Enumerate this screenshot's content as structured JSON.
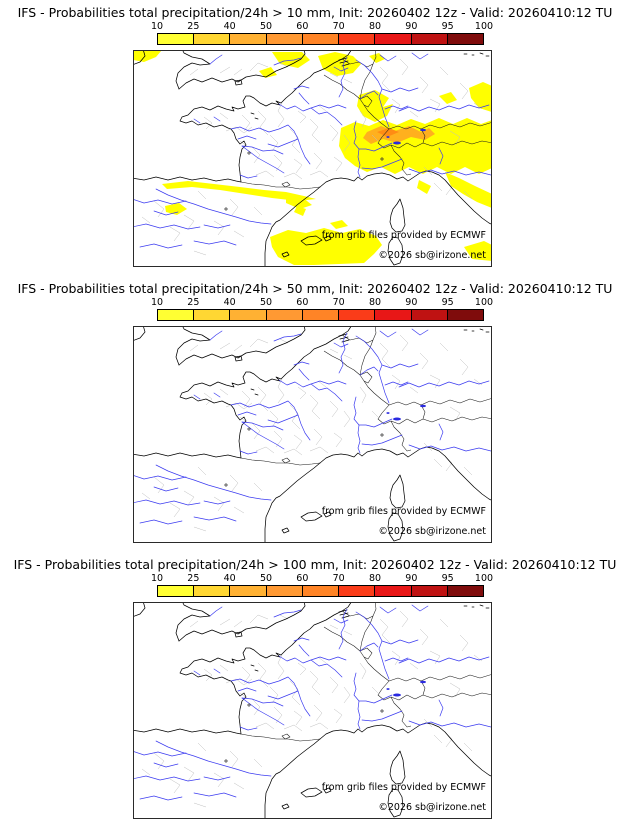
{
  "panels": [
    {
      "title": "IFS - Probabilities total precipitation/24h > 10 mm, Init: 20260402 12z - Valid: 20260410:12 TU",
      "threshold_mm": "10"
    },
    {
      "title": "IFS - Probabilities total precipitation/24h > 50 mm, Init: 20260402 12z - Valid: 20260410:12 TU",
      "threshold_mm": "50"
    },
    {
      "title": "IFS - Probabilities total precipitation/24h > 100 mm, Init: 20260402 12z - Valid: 20260410:12 TU",
      "threshold_mm": "100"
    }
  ],
  "colorbar": {
    "unit": "%",
    "ticks": [
      "10",
      "25",
      "40",
      "50",
      "60",
      "70",
      "80",
      "90",
      "95",
      "100"
    ],
    "colors": [
      "#ffff33",
      "#ffd733",
      "#ffb133",
      "#ff9933",
      "#ff8426",
      "#fa3c19",
      "#e81717",
      "#bf1212",
      "#7f0c0c"
    ]
  },
  "attribution": {
    "provider": "from grib files provided by ECMWF",
    "copyright": "©2026 sb@irizone.net"
  },
  "map_legend": {
    "region": "France / Western Europe",
    "overlay_colors": {
      "low_probability": "#ffff00",
      "mid_probability": "#ffb01e",
      "high_probability": "#ff8c14"
    },
    "line_colors": {
      "coastline": "#000000",
      "country_border": "#1c1c1c",
      "admin_border": "#bfbfbf",
      "river": "#3c3cf0"
    }
  }
}
